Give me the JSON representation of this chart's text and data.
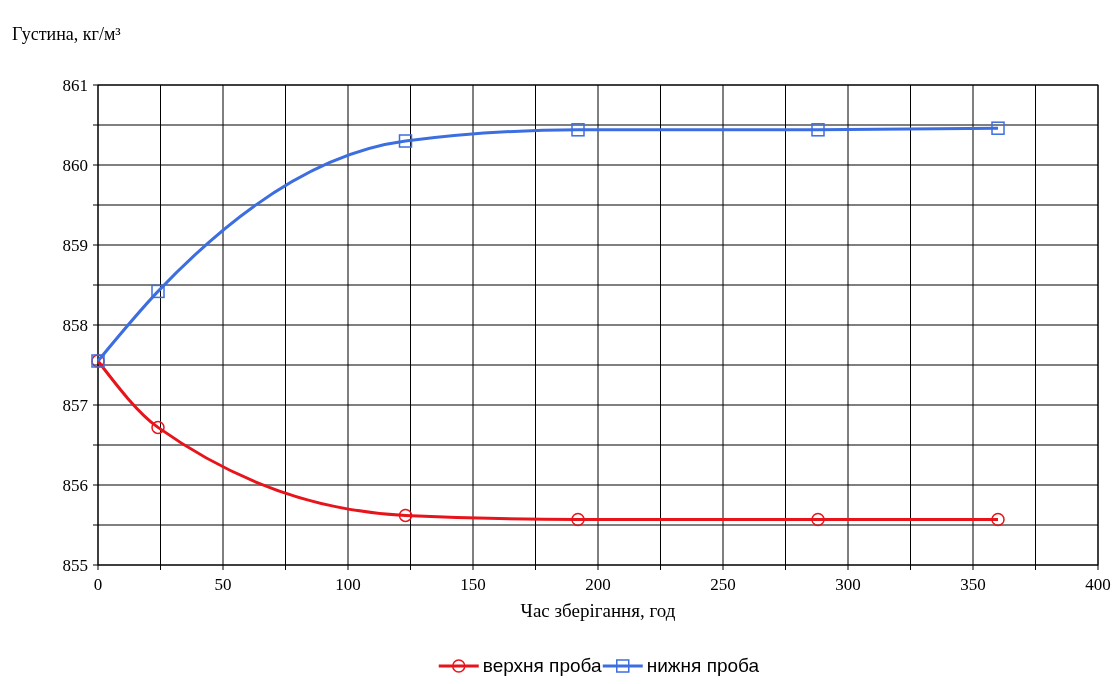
{
  "chart_data": {
    "type": "line",
    "ylabel": "Густина, кг/м³",
    "xlabel": "Час зберігання, год",
    "xlim": [
      0,
      400
    ],
    "xticks": [
      0,
      {
        "value": 25,
        "label": null
      },
      50,
      {
        "value": 75,
        "label": null
      },
      100,
      {
        "value": 125,
        "label": null
      },
      150,
      {
        "value": 175,
        "label": null
      },
      200,
      {
        "value": 225,
        "label": null
      },
      250,
      {
        "value": 275,
        "label": null
      },
      300,
      {
        "value": 325,
        "label": null
      },
      350,
      {
        "value": 375,
        "label": null
      },
      400
    ],
    "ylim": [
      855,
      861
    ],
    "yticks": [
      855,
      {
        "value": 855.5,
        "label": null
      },
      856,
      {
        "value": 856.5,
        "label": null
      },
      857,
      {
        "value": 857.5,
        "label": null
      },
      858,
      {
        "value": 858.5,
        "label": null
      },
      859,
      {
        "value": 859.5,
        "label": null
      },
      860,
      {
        "value": 860.5,
        "label": null
      },
      861
    ],
    "grid": true,
    "legend": "bottom",
    "line_style": "solid",
    "series": [
      {
        "name": "верхня проба",
        "color": "#e8141b",
        "marker": "circle",
        "x": [
          0,
          24,
          123,
          192,
          288,
          360
        ],
        "values": [
          857.55,
          856.72,
          855.62,
          855.57,
          855.57,
          855.57
        ]
      },
      {
        "name": "нижня проба",
        "color": "#3c6ee0",
        "marker": "square",
        "x": [
          0,
          24,
          123,
          192,
          288,
          360
        ],
        "values": [
          857.55,
          858.42,
          860.3,
          860.44,
          860.44,
          860.46
        ]
      }
    ]
  }
}
